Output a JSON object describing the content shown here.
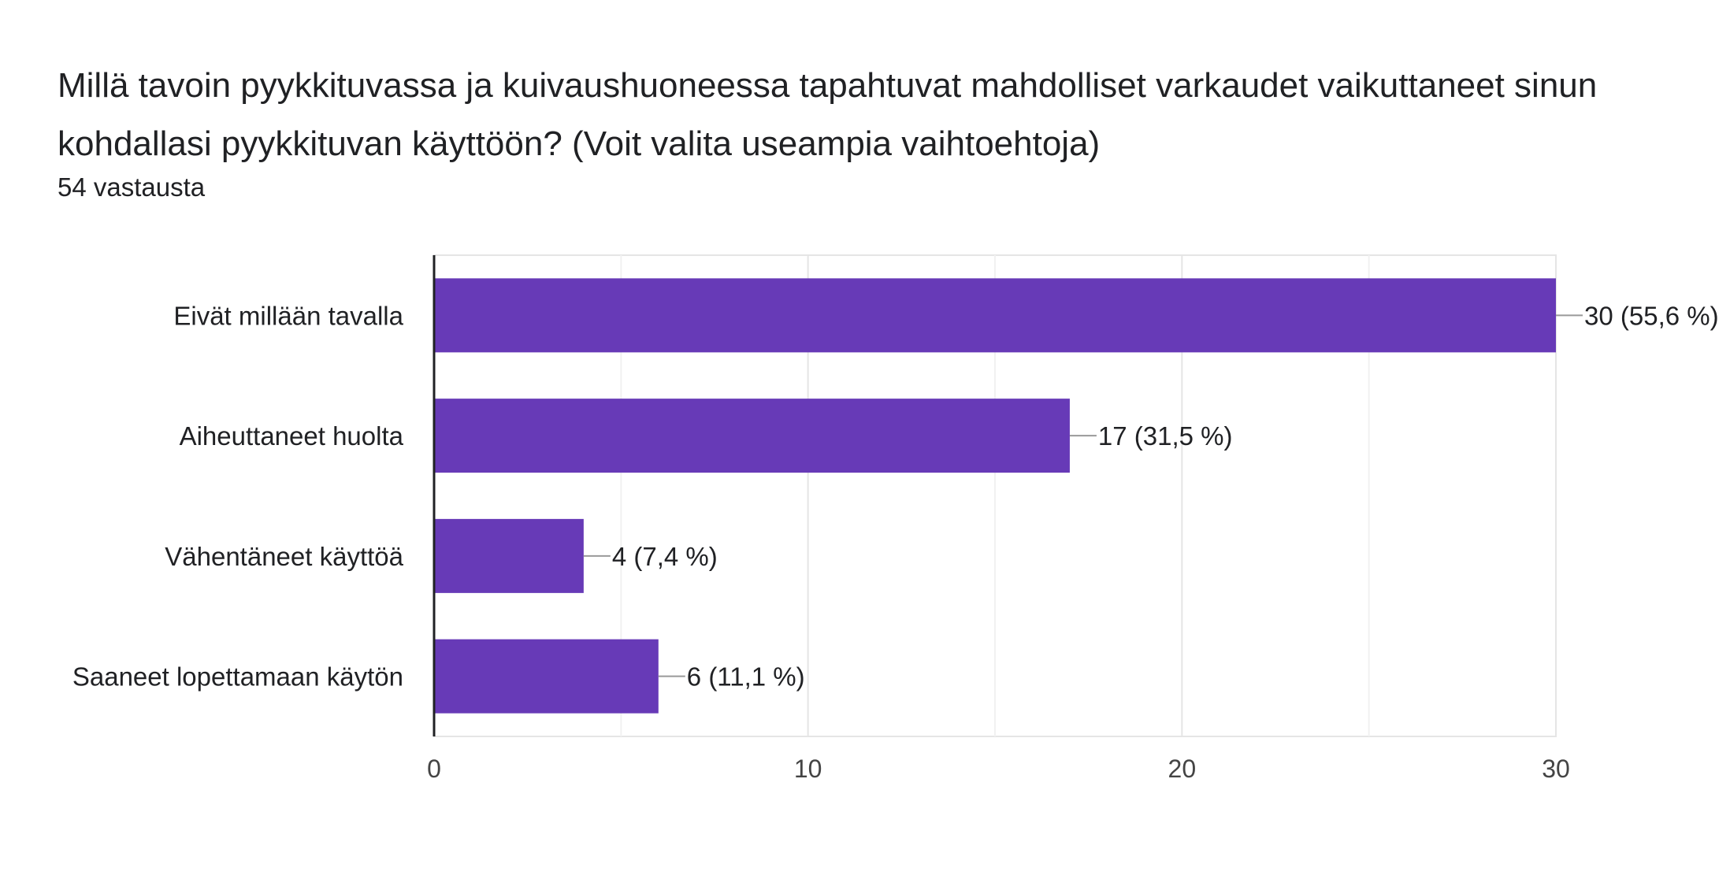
{
  "header": {
    "question": "Millä tavoin pyykkituvassa ja kuivaushuoneessa tapahtuvat mahdolliset varkaudet vaikuttaneet sinun kohdallasi pyykkituvan käyttöön? (Voit valita useampia vaihtoehtoja)",
    "response_count": "54 vastausta"
  },
  "chart_data": {
    "type": "bar",
    "orientation": "horizontal",
    "categories": [
      "Eivät millään tavalla",
      "Aiheuttaneet huolta",
      "Vähentäneet käyttöä",
      "Saaneet lopettamaan käytön"
    ],
    "values": [
      30,
      17,
      4,
      6
    ],
    "data_labels": [
      "30 (55,6 %)",
      "17 (31,5 %)",
      "4 (7,4 %)",
      "6 (11,1 %)"
    ],
    "xlim": [
      0,
      30
    ],
    "x_ticks": [
      0,
      10,
      20,
      30
    ],
    "x_tick_labels": [
      "0",
      "10",
      "20",
      "30"
    ],
    "grid": true,
    "bar_color": "#673ab7",
    "grid_color": "#e5e5e5",
    "leader_color": "#999999"
  }
}
